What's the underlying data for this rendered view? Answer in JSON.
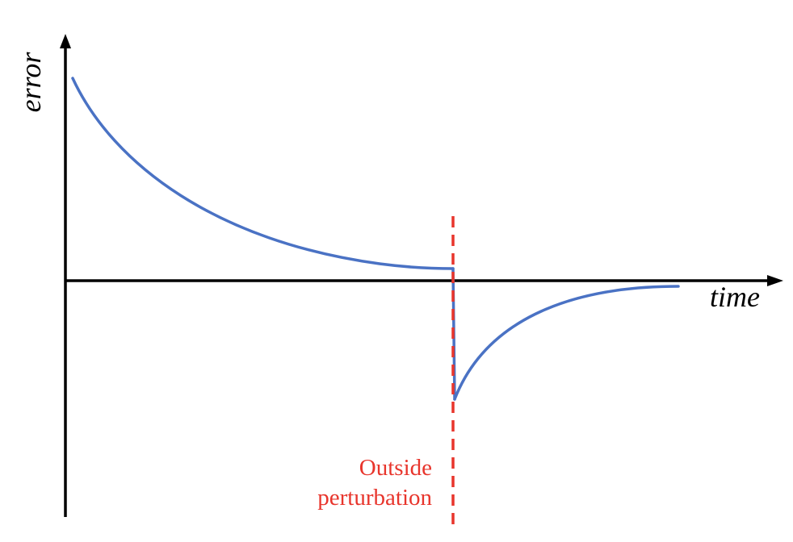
{
  "diagram": {
    "y_axis_label": "error",
    "x_axis_label": "time",
    "annotation": {
      "line1": "Outside",
      "line2": "perturbation"
    },
    "colors": {
      "axes": "#000000",
      "curve": "#4a72c4",
      "perturbation": "#e8352c"
    }
  }
}
